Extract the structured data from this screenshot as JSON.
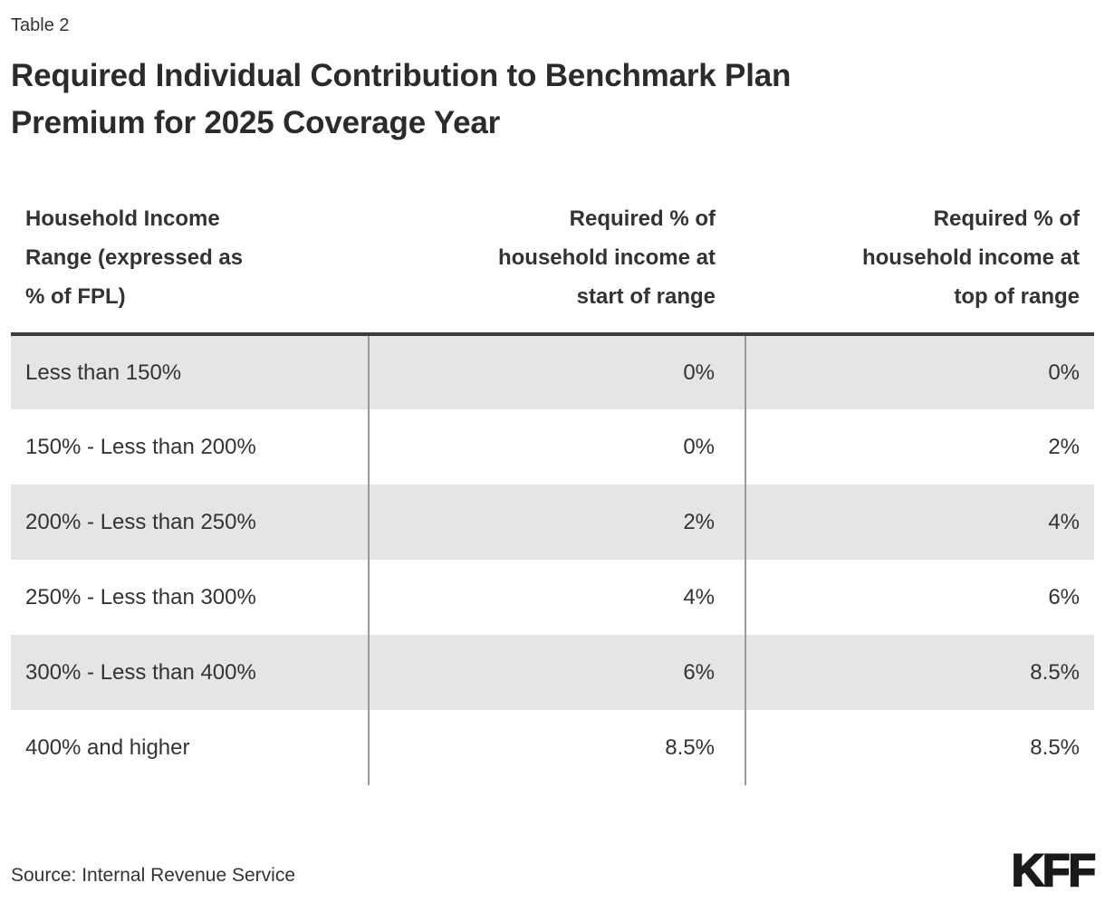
{
  "header": {
    "table_label": "Table 2",
    "title_wrapped": "Required Individual Contribution to Benchmark Plan\nPremium for 2025 Coverage Year"
  },
  "chart_data": {
    "type": "table",
    "title": "Required Individual Contribution to Benchmark Plan Premium for 2025 Coverage Year",
    "columns": [
      "Household Income Range (expressed as % of FPL)",
      "Required % of household income at start of range",
      "Required % of household income at top of range"
    ],
    "rows": [
      [
        "Less than 150%",
        "0%",
        "0%"
      ],
      [
        "150% - Less than 200%",
        "0%",
        "2%"
      ],
      [
        "200% - Less than 250%",
        "2%",
        "4%"
      ],
      [
        "250% - Less than 300%",
        "4%",
        "6%"
      ],
      [
        "300% - Less than 400%",
        "6%",
        "8.5%"
      ],
      [
        "400% and higher",
        "8.5%",
        "8.5%"
      ]
    ]
  },
  "table": {
    "column_labels_wrapped": [
      "Household Income\nRange (expressed as\n% of FPL)",
      "Required % of\nhousehold income at\nstart of range",
      "Required % of\nhousehold income at\ntop of range"
    ]
  },
  "footer": {
    "source": "Source: Internal Revenue Service",
    "logo": "KFF"
  },
  "colors": {
    "stripe": "#e5e5e5",
    "rule": "#999999",
    "header_rule": "#3b3b3b",
    "text": "#333333",
    "title_text": "#2b2b2b",
    "logo": "#1a1a1a",
    "page_bg": "#ffffff"
  }
}
